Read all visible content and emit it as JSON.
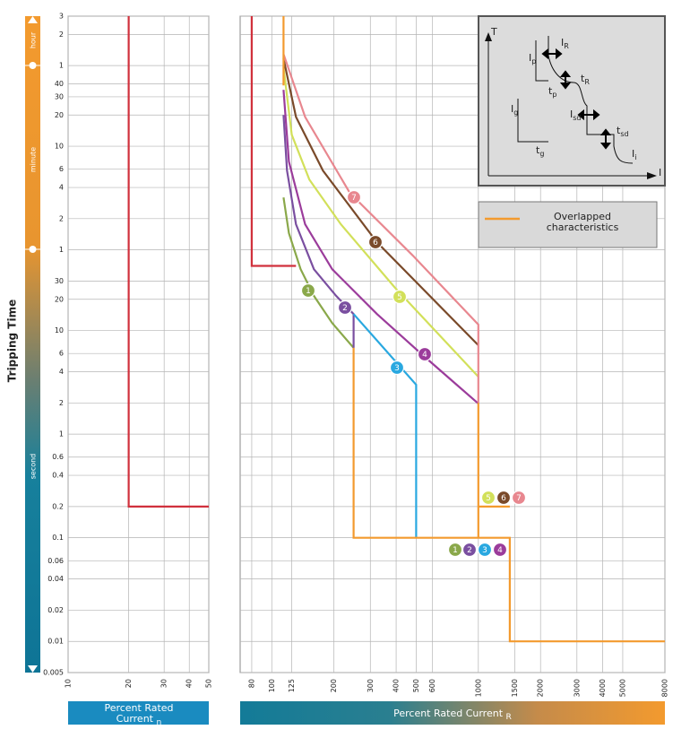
{
  "chart_data": [
    {
      "type": "line",
      "y_label": "Tripping Time",
      "time_bands": [
        "hour",
        "minute",
        "second"
      ],
      "x_label": {
        "text": "Percent Rated Current",
        "sub": "n"
      },
      "log_x": true,
      "log_y": true,
      "grid": true,
      "xlim": [
        10,
        50
      ],
      "xticks": [
        10,
        20,
        30,
        40,
        50
      ],
      "ylim": [
        0.005,
        10800
      ],
      "yticks": [
        {
          "value": 10800,
          "label": "3"
        },
        {
          "value": 7200,
          "label": "2"
        },
        {
          "value": 3600,
          "label": "1"
        },
        {
          "value": 2400,
          "label": "40"
        },
        {
          "value": 1800,
          "label": "30"
        },
        {
          "value": 1200,
          "label": "20"
        },
        {
          "value": 600,
          "label": "10"
        },
        {
          "value": 360,
          "label": "6"
        },
        {
          "value": 240,
          "label": "4"
        },
        {
          "value": 120,
          "label": "2"
        },
        {
          "value": 60,
          "label": "1"
        },
        30,
        20,
        10,
        6,
        4,
        2,
        1,
        0.6,
        0.4,
        0.2,
        0.1,
        0.06,
        0.04,
        0.02,
        0.01,
        0.005
      ],
      "series": [
        {
          "color": "#d0303c",
          "x": [
            20,
            20,
            50
          ],
          "values": [
            10800,
            0.2,
            0.2
          ]
        }
      ]
    },
    {
      "type": "line",
      "x_label": {
        "text": "Percent Rated Current",
        "sub": "R"
      },
      "log_x": true,
      "log_y": true,
      "grid": true,
      "xlim": [
        70.3,
        8000
      ],
      "xticks": [
        80,
        100,
        125,
        200,
        300,
        400,
        500,
        600,
        1000,
        1500,
        2000,
        3000,
        4000,
        5000,
        8000
      ],
      "ylim": [
        0.005,
        10800
      ],
      "series": [
        {
          "color": "#d0303c",
          "x": [
            80,
            80,
            131
          ],
          "values": [
            10800,
            42,
            42
          ]
        },
        {
          "name": "1",
          "color": "#8aa84a",
          "x": [
            114,
            121,
            138,
            160,
            196,
            249
          ],
          "values": [
            192,
            87,
            39,
            21.6,
            11.8,
            6.8
          ]
        },
        {
          "name": "2",
          "color": "#7a4fa0",
          "x": [
            114,
            118.5,
            131,
            160,
            205,
            249,
            249
          ],
          "values": [
            1200,
            349,
            106,
            39,
            21.6,
            14.4,
            6.8
          ]
        },
        {
          "name": "3",
          "color": "#29a8e0",
          "x": [
            249,
            500,
            500
          ],
          "values": [
            14.4,
            3,
            0.1
          ]
        },
        {
          "name": "4",
          "color": "#9b3c9b",
          "x": [
            114,
            121,
            145,
            196,
            323,
            532,
            1000
          ],
          "values": [
            2100,
            426,
            106,
            39,
            14.4,
            5.9,
            1.97
          ]
        },
        {
          "name": "5",
          "color": "#d2e05a",
          "x": [
            114,
            125,
            152,
            216,
            394,
            1000
          ],
          "values": [
            3450,
            774,
            286,
            106,
            26,
            3.58
          ]
        },
        {
          "name": "6",
          "color": "#7a4a2a",
          "x": [
            114,
            131,
            177,
            323,
            1000
          ],
          "values": [
            4200,
            1150,
            349,
            71,
            7.2
          ]
        },
        {
          "name": "7",
          "color": "#e8878f",
          "x": [
            114,
            145,
            239,
            481,
            1000,
            1000
          ],
          "values": [
            4650,
            1150,
            212,
            53,
            11.4,
            2
          ]
        },
        {
          "name": "Overlapped characteristics",
          "color": "#f39a2e",
          "x": [
            114,
            114,
            null,
            249,
            249,
            1420,
            1420,
            8000,
            null,
            1000,
            1000,
            null,
            1000,
            1420
          ],
          "values": [
            10800,
            2318,
            null,
            6.8,
            0.1,
            0.1,
            0.01,
            0.01,
            null,
            2,
            0.1,
            null,
            0.2,
            0.2
          ]
        }
      ]
    }
  ],
  "inset": {
    "labels": [
      {
        "text": "T"
      },
      {
        "text": "I"
      },
      {
        "text": "I",
        "sub": "R"
      },
      {
        "text": "I",
        "sub": "p"
      },
      {
        "text": "t",
        "sub": "R"
      },
      {
        "text": "t",
        "sub": "p"
      },
      {
        "text": "I",
        "sub": "g"
      },
      {
        "text": "I",
        "sub": "sd"
      },
      {
        "text": "t",
        "sub": "sd"
      },
      {
        "text": "t",
        "sub": "g"
      },
      {
        "text": "I",
        "sub": "i"
      }
    ]
  }
}
